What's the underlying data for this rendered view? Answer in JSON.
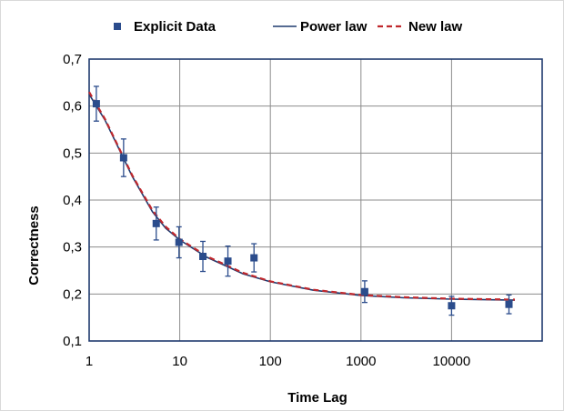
{
  "chart_data": {
    "type": "scatter",
    "title": "",
    "xlabel": "Time Lag",
    "ylabel": "Correctness",
    "x_scale": "log",
    "xlim": [
      1,
      100000
    ],
    "ylim": [
      0.1,
      0.7
    ],
    "x_ticks": [
      "1",
      "10",
      "100",
      "1000",
      "10000"
    ],
    "y_ticks": [
      "0,1",
      "0,2",
      "0,3",
      "0,4",
      "0,5",
      "0,6",
      "0,7"
    ],
    "grid": true,
    "legend_position": "top",
    "series": [
      {
        "name": "Explicit Data",
        "kind": "points_with_error_bars",
        "color": "#2b4c8c",
        "points": [
          {
            "x": 1.2,
            "y": 0.605,
            "err": 0.037
          },
          {
            "x": 2.4,
            "y": 0.49,
            "err": 0.04
          },
          {
            "x": 5.5,
            "y": 0.35,
            "err": 0.035
          },
          {
            "x": 9.8,
            "y": 0.31,
            "err": 0.033
          },
          {
            "x": 18,
            "y": 0.28,
            "err": 0.032
          },
          {
            "x": 34,
            "y": 0.27,
            "err": 0.032
          },
          {
            "x": 66,
            "y": 0.277,
            "err": 0.03
          },
          {
            "x": 1100,
            "y": 0.205,
            "err": 0.023
          },
          {
            "x": 10000,
            "y": 0.175,
            "err": 0.02
          },
          {
            "x": 43000,
            "y": 0.178,
            "err": 0.02
          }
        ]
      },
      {
        "name": "Power law",
        "kind": "line",
        "color": "#1f3a6e",
        "points": [
          {
            "x": 1,
            "y": 0.625
          },
          {
            "x": 1.5,
            "y": 0.57
          },
          {
            "x": 2,
            "y": 0.52
          },
          {
            "x": 3,
            "y": 0.45
          },
          {
            "x": 5,
            "y": 0.375
          },
          {
            "x": 7,
            "y": 0.34
          },
          {
            "x": 10,
            "y": 0.315
          },
          {
            "x": 20,
            "y": 0.278
          },
          {
            "x": 50,
            "y": 0.243
          },
          {
            "x": 100,
            "y": 0.226
          },
          {
            "x": 300,
            "y": 0.208
          },
          {
            "x": 1000,
            "y": 0.197
          },
          {
            "x": 3000,
            "y": 0.192
          },
          {
            "x": 10000,
            "y": 0.189
          },
          {
            "x": 50000,
            "y": 0.187
          }
        ]
      },
      {
        "name": "New law",
        "kind": "dashed_line",
        "color": "#c0282d",
        "points": [
          {
            "x": 1,
            "y": 0.63
          },
          {
            "x": 1.5,
            "y": 0.572
          },
          {
            "x": 2,
            "y": 0.522
          },
          {
            "x": 3,
            "y": 0.452
          },
          {
            "x": 5,
            "y": 0.378
          },
          {
            "x": 7,
            "y": 0.343
          },
          {
            "x": 10,
            "y": 0.317
          },
          {
            "x": 20,
            "y": 0.28
          },
          {
            "x": 50,
            "y": 0.245
          },
          {
            "x": 100,
            "y": 0.227
          },
          {
            "x": 300,
            "y": 0.209
          },
          {
            "x": 1000,
            "y": 0.198
          },
          {
            "x": 3000,
            "y": 0.193
          },
          {
            "x": 10000,
            "y": 0.19
          },
          {
            "x": 50000,
            "y": 0.188
          }
        ]
      }
    ]
  }
}
